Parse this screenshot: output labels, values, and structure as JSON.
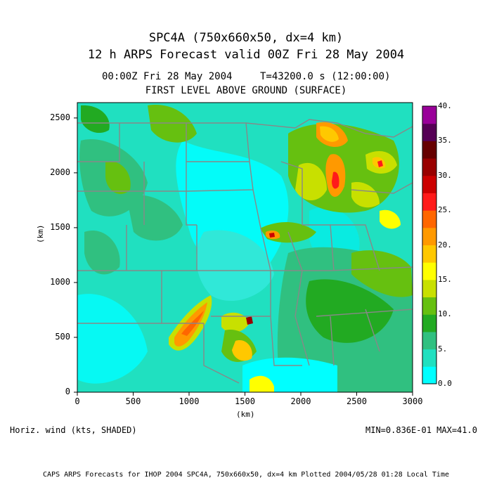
{
  "title": {
    "line1": "SPC4A (750x660x50, dx=4 km)",
    "line2": "12 h ARPS Forecast valid 00Z Fri 28 May 2004"
  },
  "subtitle": {
    "valid_time": "00:00Z Fri 28 May 2004",
    "sim_time": "T=43200.0 s (12:00:00)",
    "level": "FIRST LEVEL ABOVE GROUND (SURFACE)"
  },
  "axes": {
    "xlabel": "(km)",
    "ylabel": "(km)",
    "xticks": [
      "0",
      "500",
      "1000",
      "1500",
      "2000",
      "2500",
      "3000"
    ],
    "yticks": [
      "0",
      "500",
      "1000",
      "1500",
      "2000",
      "2500"
    ],
    "xrange": [
      0,
      3000
    ],
    "yrange": [
      0,
      2640
    ]
  },
  "colorbar": {
    "labels": [
      "0.0",
      "5.",
      "10.",
      "15.",
      "20.",
      "25.",
      "30.",
      "35.",
      "40."
    ],
    "colors": [
      "#00ffff",
      "#20e0c0",
      "#30c080",
      "#22aa22",
      "#66c010",
      "#c8e000",
      "#ffff00",
      "#ffc800",
      "#ff9900",
      "#ff6600",
      "#ff1a1a",
      "#cc0000",
      "#990000",
      "#660000",
      "#550055",
      "#990099"
    ]
  },
  "field_label": "Horiz. wind (kts, SHADED)",
  "minmax": "MIN=0.836E-01 MAX=41.0",
  "footer": "CAPS ARPS Forecasts for IHOP 2004   SPC4A, 750x660x50, dx=4 km  Plotted 2004/05/28 01:28 Local Time"
}
